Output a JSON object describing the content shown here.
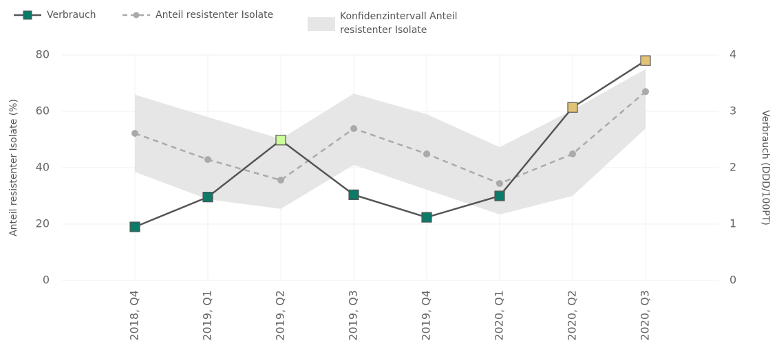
{
  "chart_data": {
    "type": "line",
    "categories": [
      "2018, Q4",
      "2019, Q1",
      "2019, Q2",
      "2019, Q3",
      "2019, Q4",
      "2020, Q1",
      "2020, Q2",
      "2020, Q3"
    ],
    "y_label": "Anteil resistenter Isolate (%)",
    "y2_label": "Verbrauch (DDD/100PT)",
    "ylim": [
      0,
      80
    ],
    "yticks": [
      0,
      20,
      40,
      60,
      80
    ],
    "y2lim": [
      0,
      4
    ],
    "y2ticks": [
      0,
      1,
      2,
      3,
      4
    ],
    "grid": true,
    "legend": "top-left",
    "band": {
      "name": "Konfidenzintervall Anteil resistenter Isolate",
      "color": "#e6e6e6",
      "upper": [
        65.9,
        58,
        50.2,
        66.3,
        59,
        47.3,
        60.5,
        75
      ],
      "lower": [
        38.5,
        28.8,
        25.4,
        41,
        32.2,
        23.4,
        30,
        53.9
      ]
    },
    "series": [
      {
        "name": "Verbrauch",
        "color": "#555555",
        "axis": "y2",
        "point_colors": [
          "#0b7a68",
          "#0b7a68",
          "#ccff99",
          "#0b7a68",
          "#0b7a68",
          "#0b7a68",
          "#e2c275",
          "#e2c275"
        ],
        "values": [
          0.95,
          1.48,
          2.49,
          1.52,
          1.12,
          1.5,
          3.07,
          3.9
        ]
      },
      {
        "name": "Anteil resistenter Isolate",
        "color": "#aaaaaa",
        "dash": true,
        "values": [
          52.2,
          42.9,
          35.6,
          53.9,
          44.9,
          34.4,
          44.9,
          67
        ]
      }
    ]
  }
}
